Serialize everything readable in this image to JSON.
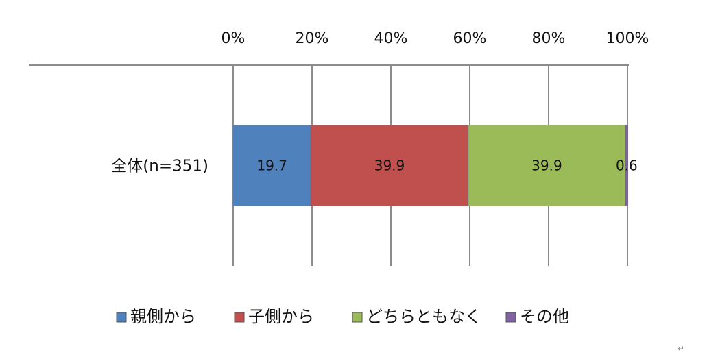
{
  "chart_data": {
    "type": "bar",
    "orientation": "horizontal",
    "stacked": true,
    "categories": [
      "全体(n=351)"
    ],
    "series": [
      {
        "name": "親側から",
        "values": [
          19.7
        ],
        "color": "#4f81bd",
        "label": "19.7"
      },
      {
        "name": "子側から",
        "values": [
          39.9
        ],
        "color": "#c0504d",
        "label": "39.9"
      },
      {
        "name": "どちらともなく",
        "values": [
          39.9
        ],
        "color": "#9bbb59",
        "label": "39.9"
      },
      {
        "name": "その他",
        "values": [
          0.6
        ],
        "color": "#8064a2",
        "label": "0.6"
      }
    ],
    "xlim": [
      0,
      100
    ],
    "x_ticks": [
      "0%",
      "20%",
      "40%",
      "60%",
      "80%",
      "100%"
    ],
    "grid": true,
    "legend_position": "bottom"
  },
  "page_mark": "↵"
}
